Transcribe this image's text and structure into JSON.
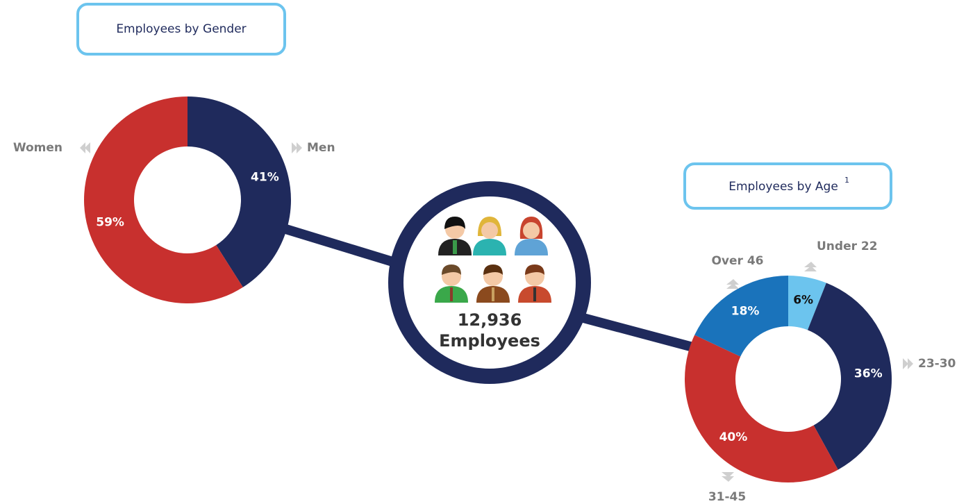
{
  "chart_data": [
    {
      "type": "pie",
      "title": "Employees by Gender",
      "categories": [
        "Men",
        "Women"
      ],
      "values": [
        41,
        59
      ],
      "value_labels": [
        "41%",
        "59%"
      ],
      "colors": [
        "#1f2a5c",
        "#c8302e"
      ]
    },
    {
      "type": "pie",
      "title": "Employees by Age",
      "title_note": "1",
      "categories": [
        "Under 22",
        "23-30",
        "31-45",
        "Over 46"
      ],
      "values": [
        6,
        36,
        40,
        18
      ],
      "value_labels": [
        "6%",
        "36%",
        "40%",
        "18%"
      ],
      "colors": [
        "#6cc4ee",
        "#1f2a5c",
        "#c8302e",
        "#1a73bb"
      ]
    }
  ],
  "center": {
    "count": "12,936",
    "caption": "Employees"
  }
}
